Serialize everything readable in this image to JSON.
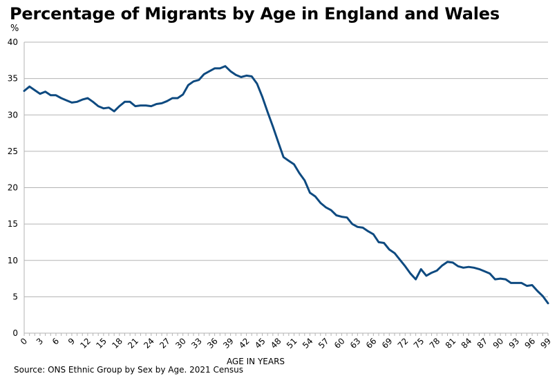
{
  "header": {
    "title": "Percentage of Migrants by Age in England and Wales",
    "unit": "%"
  },
  "footer": {
    "source": "Source: ONS Ethnic Group by Sex by Age.  2021 Census"
  },
  "chart_data": {
    "type": "line",
    "title": "Percentage of Migrants by Age in England and Wales",
    "xlabel": "AGE IN YEARS",
    "ylabel": "%",
    "xlim": [
      0,
      99
    ],
    "ylim": [
      0,
      40
    ],
    "x_ticks": [
      0,
      3,
      6,
      9,
      12,
      15,
      18,
      21,
      24,
      27,
      30,
      33,
      36,
      39,
      42,
      45,
      48,
      51,
      54,
      57,
      60,
      63,
      66,
      69,
      72,
      75,
      78,
      81,
      84,
      87,
      90,
      93,
      96,
      99
    ],
    "y_ticks": [
      0,
      5,
      10,
      15,
      20,
      25,
      30,
      35,
      40
    ],
    "grid": "horizontal",
    "line_color": "#0e4a80",
    "series": [
      {
        "x": [
          0,
          1,
          2,
          3,
          4,
          5,
          6,
          7,
          8,
          9,
          10,
          11,
          12,
          13,
          14,
          15,
          16,
          17,
          18,
          19,
          20,
          21,
          22,
          23,
          24,
          25,
          26,
          27,
          28,
          29,
          30,
          31,
          32,
          33,
          34,
          35,
          36,
          37,
          38,
          39,
          40,
          41,
          42,
          43,
          44,
          45,
          46,
          47,
          48,
          49,
          50,
          51,
          52,
          53,
          54,
          55,
          56,
          57,
          58,
          59,
          60,
          61,
          62,
          63,
          64,
          65,
          66,
          67,
          68,
          69,
          70,
          71,
          72,
          73,
          74,
          75,
          76,
          77,
          78,
          79,
          80,
          81,
          82,
          83,
          84,
          85,
          86,
          87,
          88,
          89,
          90,
          91,
          92,
          93,
          94,
          95,
          96,
          97,
          98,
          99
        ],
        "values": [
          33.3,
          33.9,
          33.4,
          32.9,
          33.2,
          32.7,
          32.7,
          32.3,
          32.0,
          31.7,
          31.8,
          32.1,
          32.3,
          31.8,
          31.2,
          30.9,
          31.0,
          30.5,
          31.2,
          31.8,
          31.8,
          31.2,
          31.3,
          31.3,
          31.2,
          31.5,
          31.6,
          31.9,
          32.3,
          32.3,
          32.8,
          34.1,
          34.6,
          34.8,
          35.6,
          36.0,
          36.4,
          36.4,
          36.7,
          36.0,
          35.5,
          35.2,
          35.4,
          35.3,
          34.3,
          32.5,
          30.4,
          28.4,
          26.3,
          24.2,
          23.7,
          23.2,
          22.0,
          21.0,
          19.3,
          18.8,
          17.9,
          17.3,
          16.9,
          16.2,
          16.0,
          15.9,
          15.0,
          14.6,
          14.5,
          14.0,
          13.6,
          12.5,
          12.4,
          11.5,
          11.0,
          10.1,
          9.2,
          8.2,
          7.4,
          8.8,
          7.9,
          8.3,
          8.6,
          9.3,
          9.8,
          9.7,
          9.2,
          9.0,
          9.1,
          9.0,
          8.8,
          8.5,
          8.2,
          7.4,
          7.5,
          7.4,
          6.9,
          6.9,
          6.9,
          6.5,
          6.6,
          5.8,
          5.1,
          4.1
        ]
      }
    ]
  }
}
